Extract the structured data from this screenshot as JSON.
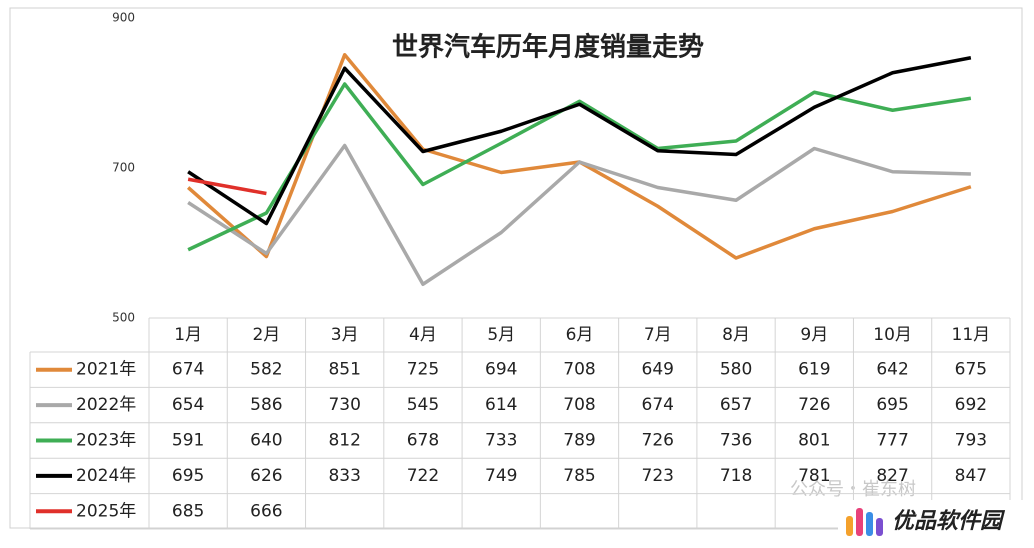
{
  "chart_data": {
    "type": "line",
    "title": "世界汽车历年月度销量走势",
    "categories": [
      "1月",
      "2月",
      "3月",
      "4月",
      "5月",
      "6月",
      "7月",
      "8月",
      "9月",
      "10月",
      "11月"
    ],
    "series": [
      {
        "name": "2021年",
        "color": "#e0893a",
        "values": [
          674,
          582,
          851,
          725,
          694,
          708,
          649,
          580,
          619,
          642,
          675
        ]
      },
      {
        "name": "2022年",
        "color": "#a9a9a9",
        "values": [
          654,
          586,
          730,
          545,
          614,
          708,
          674,
          657,
          726,
          695,
          692
        ]
      },
      {
        "name": "2023年",
        "color": "#3fae55",
        "values": [
          591,
          640,
          812,
          678,
          733,
          789,
          726,
          736,
          801,
          777,
          793
        ]
      },
      {
        "name": "2024年",
        "color": "#000000",
        "values": [
          695,
          626,
          833,
          722,
          749,
          785,
          723,
          718,
          781,
          827,
          847
        ]
      },
      {
        "name": "2025年",
        "color": "#e0302a",
        "values": [
          685,
          666,
          null,
          null,
          null,
          null,
          null,
          null,
          null,
          null,
          null
        ]
      }
    ],
    "ylim": [
      500,
      900
    ],
    "yticks": [
      500,
      700,
      900
    ],
    "grid": false,
    "watermarks": [
      "公众号・崔东树",
      "优品软件园"
    ]
  }
}
